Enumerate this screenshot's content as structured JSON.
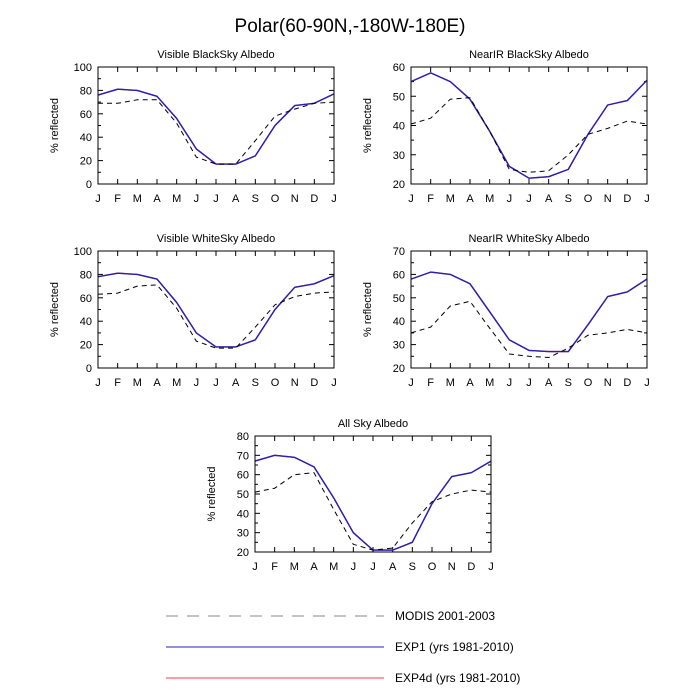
{
  "figure": {
    "title": "Polar(60-90N,-180W-180E)"
  },
  "colors": {
    "modis": "#000000",
    "exp1": "#2222bb",
    "exp4d": "#ff3b4e",
    "axis": "#000000"
  },
  "legend": {
    "placement": "bottom",
    "entries": [
      {
        "key": "modis",
        "label": "MODIS 2001-2003",
        "style": "dashed",
        "color_key": "modis"
      },
      {
        "key": "exp1",
        "label": "EXP1 (yrs 1981-2010)",
        "style": "solid",
        "color_key": "exp1"
      },
      {
        "key": "exp4d",
        "label": "EXP4d (yrs 1981-2010)",
        "style": "solid",
        "color_key": "exp4d"
      }
    ]
  },
  "chart_data": [
    {
      "type": "line",
      "title": "Visible BlackSky Albedo",
      "xlabel": "",
      "ylabel": "% reflected",
      "categories": [
        "J",
        "F",
        "M",
        "A",
        "M",
        "J",
        "J",
        "A",
        "S",
        "O",
        "N",
        "D",
        "J"
      ],
      "ylim": [
        0,
        100
      ],
      "yticks": [
        0,
        20,
        40,
        60,
        80,
        100
      ],
      "series": [
        {
          "name": "MODIS 2001-2003",
          "key": "modis",
          "values": [
            69,
            69,
            72,
            72,
            52,
            23,
            17,
            17,
            37,
            58,
            64,
            69,
            70
          ]
        },
        {
          "name": "EXP1 (yrs 1981-2010)",
          "key": "exp1",
          "values": [
            76,
            81,
            80,
            75,
            56,
            30,
            17,
            17,
            24,
            50,
            67,
            69,
            77
          ]
        },
        {
          "name": "EXP4d (yrs 1981-2010)",
          "key": "exp4d",
          "values": [
            76,
            81,
            80,
            75,
            56,
            30,
            17,
            17,
            24,
            50,
            67,
            69,
            77
          ]
        }
      ]
    },
    {
      "type": "line",
      "title": "NearIR BlackSky Albedo",
      "xlabel": "",
      "ylabel": "% reflected",
      "categories": [
        "J",
        "F",
        "M",
        "A",
        "M",
        "J",
        "J",
        "A",
        "S",
        "O",
        "N",
        "D",
        "J"
      ],
      "ylim": [
        20,
        60
      ],
      "yticks": [
        20,
        30,
        40,
        50,
        60
      ],
      "series": [
        {
          "name": "MODIS 2001-2003",
          "key": "modis",
          "values": [
            40.5,
            42.5,
            49,
            49.5,
            38,
            25,
            24,
            24.5,
            30,
            37,
            39,
            41.5,
            40.5
          ]
        },
        {
          "name": "EXP1 (yrs 1981-2010)",
          "key": "exp1",
          "values": [
            55,
            58,
            55,
            49,
            38,
            26,
            22,
            22.5,
            25,
            37,
            47,
            48.5,
            55.5
          ]
        },
        {
          "name": "EXP4d (yrs 1981-2010)",
          "key": "exp4d",
          "values": [
            55,
            58,
            55,
            49,
            38,
            26,
            22,
            22.5,
            25,
            37,
            47,
            48.5,
            55.5
          ]
        }
      ]
    },
    {
      "type": "line",
      "title": "Visible WhiteSky Albedo",
      "xlabel": "",
      "ylabel": "% reflected",
      "categories": [
        "J",
        "F",
        "M",
        "A",
        "M",
        "J",
        "J",
        "A",
        "S",
        "O",
        "N",
        "D",
        "J"
      ],
      "ylim": [
        0,
        100
      ],
      "yticks": [
        0,
        20,
        40,
        60,
        80,
        100
      ],
      "series": [
        {
          "name": "MODIS 2001-2003",
          "key": "modis",
          "values": [
            63,
            64,
            70,
            71,
            51,
            23,
            17,
            17,
            35,
            54,
            61,
            64,
            65
          ]
        },
        {
          "name": "EXP1 (yrs 1981-2010)",
          "key": "exp1",
          "values": [
            78,
            81,
            80,
            76,
            56,
            30,
            18,
            18,
            24,
            50,
            69,
            72,
            79
          ]
        },
        {
          "name": "EXP4d (yrs 1981-2010)",
          "key": "exp4d",
          "values": [
            78,
            81,
            80,
            76,
            56,
            30,
            18,
            18,
            24,
            50,
            69,
            72,
            79
          ]
        }
      ]
    },
    {
      "type": "line",
      "title": "NearIR WhiteSky Albedo",
      "xlabel": "",
      "ylabel": "% reflected",
      "categories": [
        "J",
        "F",
        "M",
        "A",
        "M",
        "J",
        "J",
        "A",
        "S",
        "O",
        "N",
        "D",
        "J"
      ],
      "ylim": [
        20,
        70
      ],
      "yticks": [
        20,
        30,
        40,
        50,
        60,
        70
      ],
      "series": [
        {
          "name": "MODIS 2001-2003",
          "key": "modis",
          "values": [
            35,
            37.5,
            46.5,
            48.5,
            37,
            26,
            25,
            24.5,
            28.5,
            34,
            35,
            36.5,
            35
          ]
        },
        {
          "name": "EXP1 (yrs 1981-2010)",
          "key": "exp1",
          "values": [
            58,
            61,
            60,
            56,
            44,
            32,
            27.5,
            27,
            27,
            38.5,
            50.5,
            52.5,
            58
          ]
        },
        {
          "name": "EXP4d (yrs 1981-2010)",
          "key": "exp4d",
          "values": [
            58,
            61,
            60,
            56,
            44,
            32,
            27.5,
            27,
            27,
            38.5,
            50.5,
            52.5,
            58
          ]
        }
      ]
    },
    {
      "type": "line",
      "title": "All Sky Albedo",
      "xlabel": "",
      "ylabel": "% reflected",
      "categories": [
        "J",
        "F",
        "M",
        "A",
        "M",
        "J",
        "J",
        "A",
        "S",
        "O",
        "N",
        "D",
        "J"
      ],
      "ylim": [
        20,
        80
      ],
      "yticks": [
        20,
        30,
        40,
        50,
        60,
        70,
        80
      ],
      "series": [
        {
          "name": "MODIS 2001-2003",
          "key": "modis",
          "values": [
            51,
            53,
            60,
            61,
            42,
            24,
            21,
            22,
            35,
            46,
            50,
            52,
            51
          ]
        },
        {
          "name": "EXP1 (yrs 1981-2010)",
          "key": "exp1",
          "values": [
            67,
            70,
            69,
            64,
            48,
            30,
            21,
            21,
            25,
            45,
            59,
            61,
            67
          ]
        },
        {
          "name": "EXP4d (yrs 1981-2010)",
          "key": "exp4d",
          "values": [
            67,
            70,
            69,
            64,
            48,
            30,
            21,
            21,
            25,
            45,
            59,
            61,
            67
          ]
        }
      ]
    }
  ]
}
